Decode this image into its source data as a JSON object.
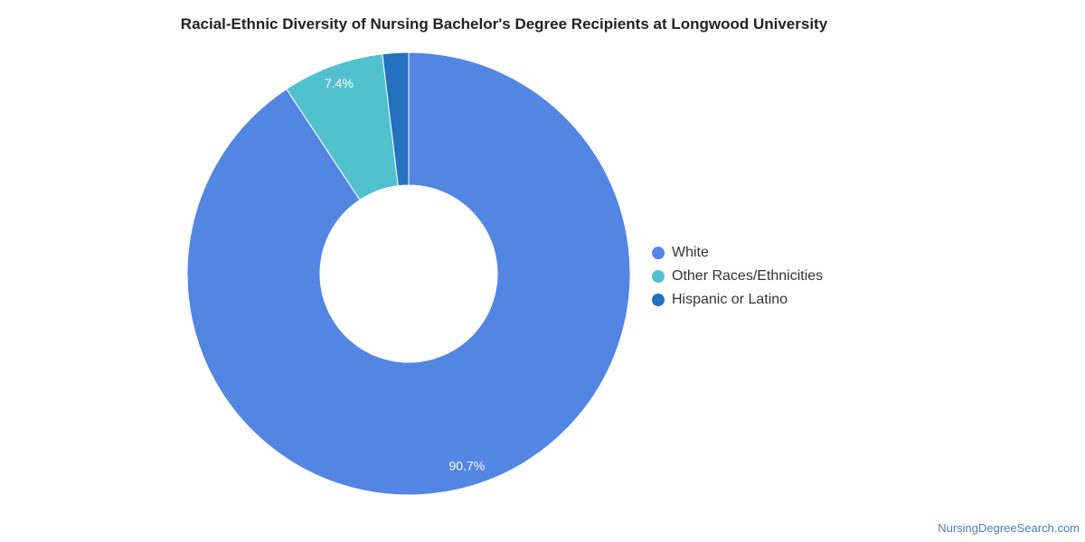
{
  "chart_data": {
    "type": "pie",
    "title": "Racial-Ethnic Diversity of Nursing Bachelor's Degree Recipients at Longwood University",
    "categories": [
      "White",
      "Other Races/Ethnicities",
      "Hispanic or Latino"
    ],
    "values": [
      90.7,
      7.4,
      1.9
    ],
    "labels": [
      "90.7%",
      "7.4%",
      ""
    ],
    "colors": [
      "#5385e3",
      "#52c1cf",
      "#2272bf"
    ],
    "legend_position": "right"
  },
  "watermark": "NursingDegreeSearch.com"
}
